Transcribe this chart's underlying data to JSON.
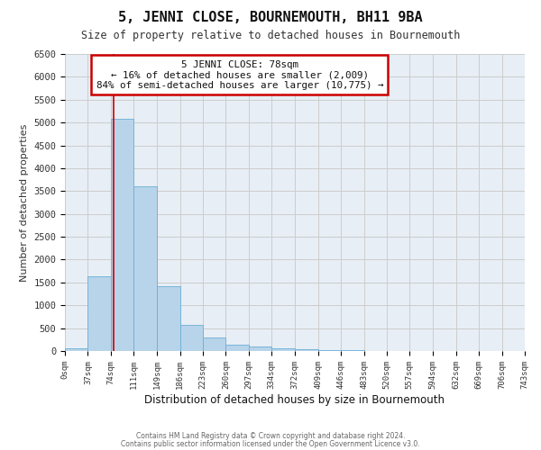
{
  "title": "5, JENNI CLOSE, BOURNEMOUTH, BH11 9BA",
  "subtitle": "Size of property relative to detached houses in Bournemouth",
  "xlabel": "Distribution of detached houses by size in Bournemouth",
  "ylabel": "Number of detached properties",
  "bar_color": "#b8d4ea",
  "bar_edge_color": "#6aaed6",
  "background_color": "#ffffff",
  "grid_color": "#cccccc",
  "plot_bg_color": "#e8eef5",
  "annotation_box_color": "#cc0000",
  "annotation_line_color": "#cc0000",
  "property_line_x": 78,
  "annotation_title": "5 JENNI CLOSE: 78sqm",
  "annotation_line1": "← 16% of detached houses are smaller (2,009)",
  "annotation_line2": "84% of semi-detached houses are larger (10,775) →",
  "ylim": [
    0,
    6500
  ],
  "yticks": [
    0,
    500,
    1000,
    1500,
    2000,
    2500,
    3000,
    3500,
    4000,
    4500,
    5000,
    5500,
    6000,
    6500
  ],
  "bin_edges": [
    0,
    37,
    74,
    111,
    149,
    186,
    223,
    260,
    297,
    334,
    372,
    409,
    446,
    483,
    520,
    557,
    594,
    632,
    669,
    706,
    743
  ],
  "bin_labels": [
    "0sqm",
    "37sqm",
    "74sqm",
    "111sqm",
    "149sqm",
    "186sqm",
    "223sqm",
    "260sqm",
    "297sqm",
    "334sqm",
    "372sqm",
    "409sqm",
    "446sqm",
    "483sqm",
    "520sqm",
    "557sqm",
    "594sqm",
    "632sqm",
    "669sqm",
    "706sqm",
    "743sqm"
  ],
  "bar_heights": [
    50,
    1630,
    5080,
    3600,
    1420,
    580,
    300,
    140,
    90,
    50,
    30,
    20,
    10,
    0,
    0,
    0,
    0,
    0,
    0,
    0
  ],
  "footer_line1": "Contains HM Land Registry data © Crown copyright and database right 2024.",
  "footer_line2": "Contains public sector information licensed under the Open Government Licence v3.0."
}
